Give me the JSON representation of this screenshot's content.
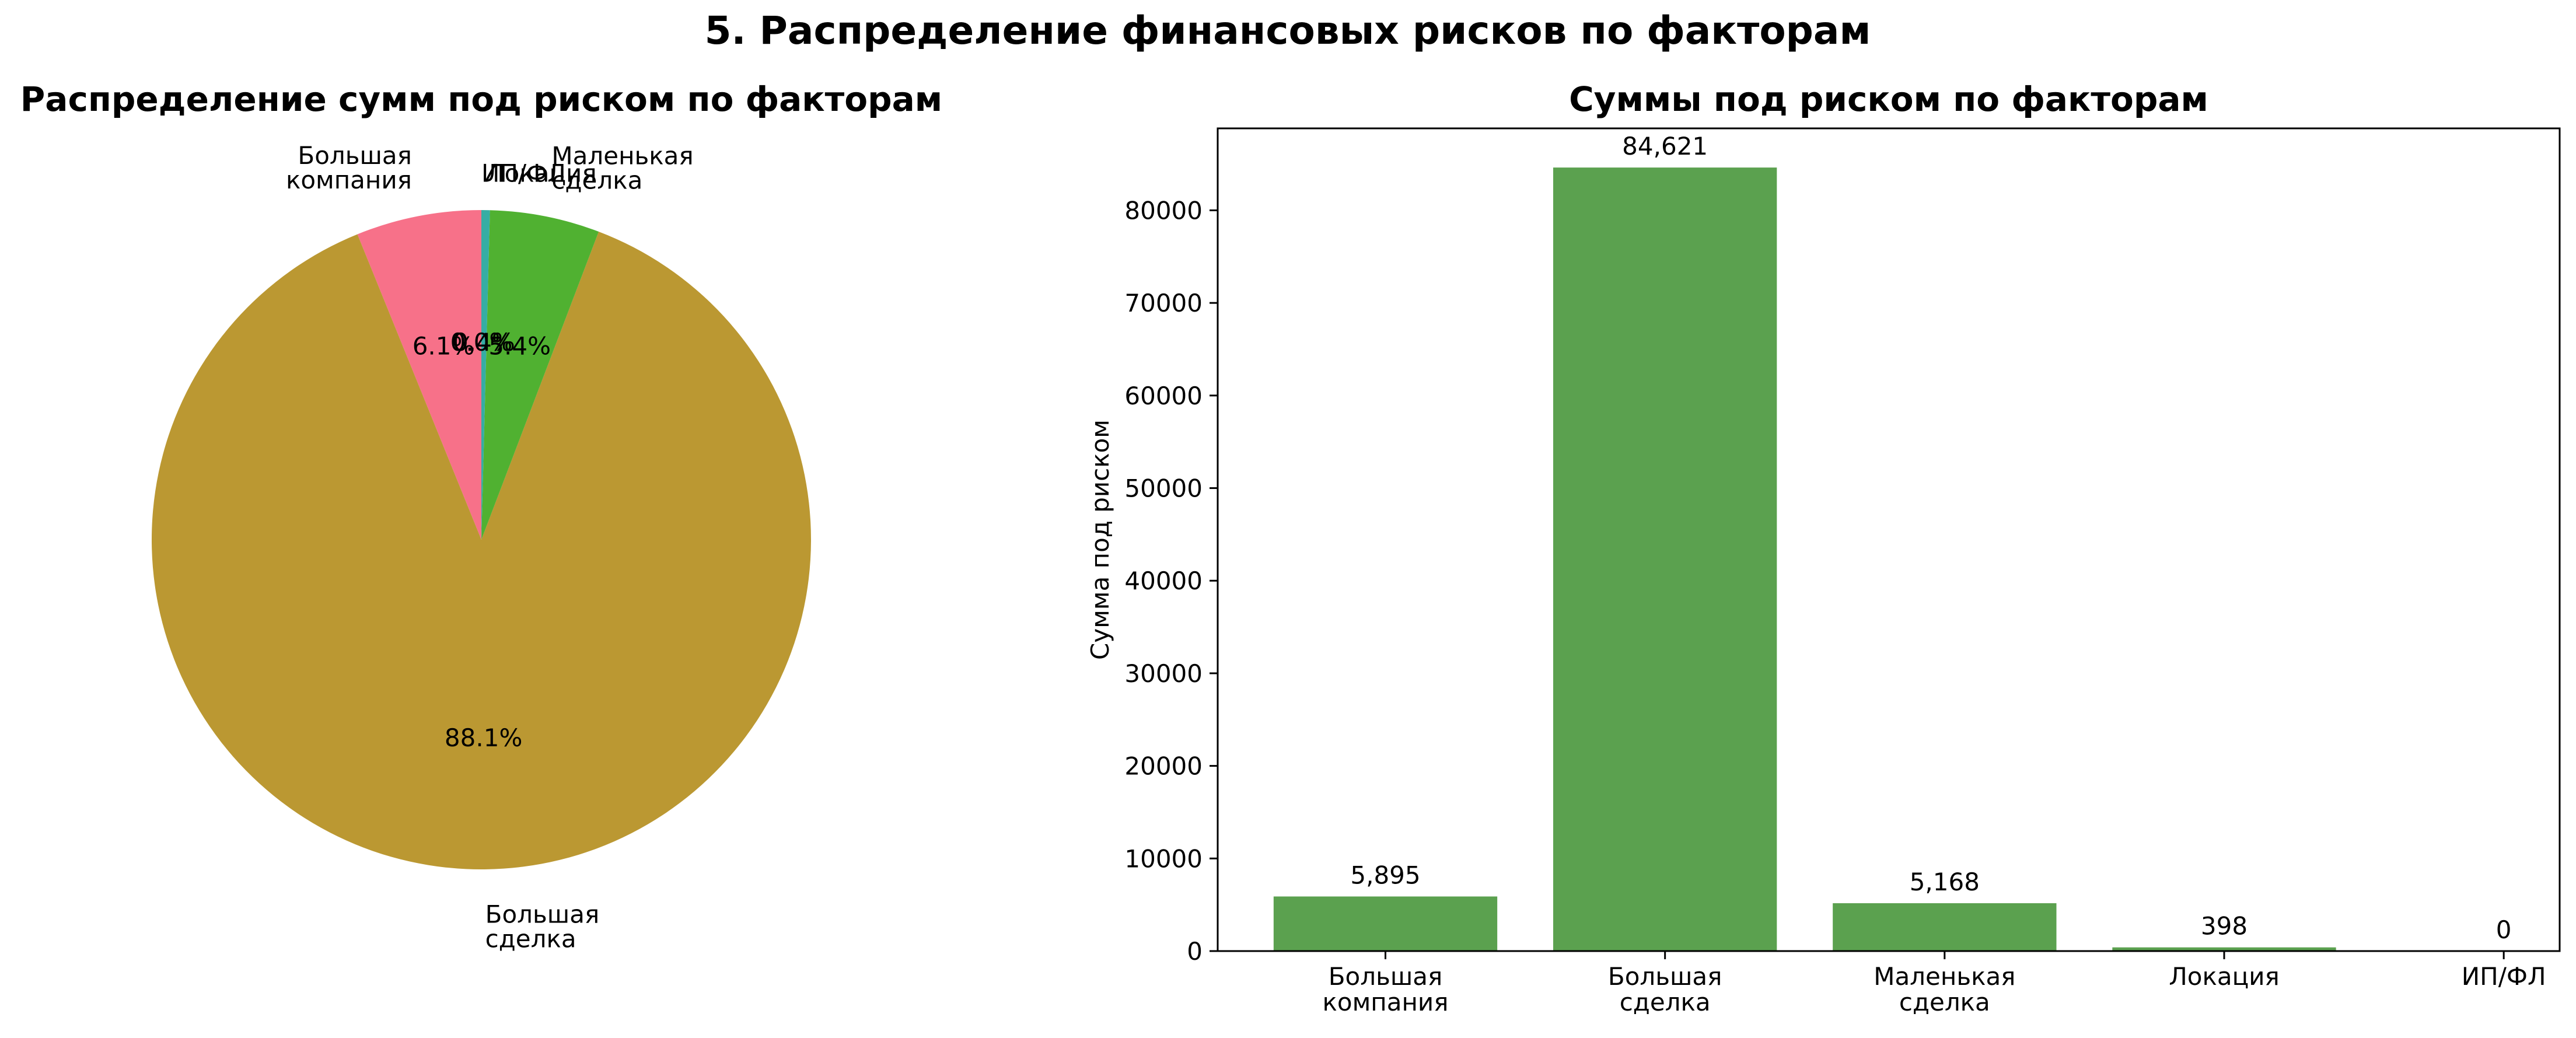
{
  "figure": {
    "suptitle": "5. Распределение финансовых рисков по факторам"
  },
  "chart_data": [
    {
      "type": "pie",
      "title": "Распределение сумм под риском по факторам",
      "labels": [
        [
          "Большая",
          "компания"
        ],
        [
          "Большая",
          "сделка"
        ],
        [
          "Маленькая",
          "сделка"
        ],
        [
          "Локация"
        ],
        [
          "ИП/ФЛ"
        ]
      ],
      "values": [
        5895,
        84621,
        5168,
        398,
        0
      ],
      "percent_labels": [
        "6.1%",
        "88.1%",
        "5.4%",
        "0.4%",
        "0.0%"
      ],
      "colors": [
        "#f77189",
        "#bb9832",
        "#50b131",
        "#36ada4",
        "#3ba3ec"
      ],
      "start_angle_deg": 90,
      "direction": "counterclockwise"
    },
    {
      "type": "bar",
      "title": "Суммы под риском по факторам",
      "categories": [
        [
          "Большая",
          "компания"
        ],
        [
          "Большая",
          "сделка"
        ],
        [
          "Маленькая",
          "сделка"
        ],
        [
          "Локация"
        ],
        [
          "ИП/ФЛ"
        ]
      ],
      "values": [
        5895,
        84621,
        5168,
        398,
        0
      ],
      "value_labels": [
        "5,895",
        "84,621",
        "5,168",
        "398",
        "0"
      ],
      "ylabel": "Сумма под риском",
      "xlabel": "",
      "ylim": [
        0,
        88852
      ],
      "yticks": [
        0,
        10000,
        20000,
        30000,
        40000,
        50000,
        60000,
        70000,
        80000
      ],
      "bar_color": "#5ba14f",
      "grid": false
    }
  ]
}
